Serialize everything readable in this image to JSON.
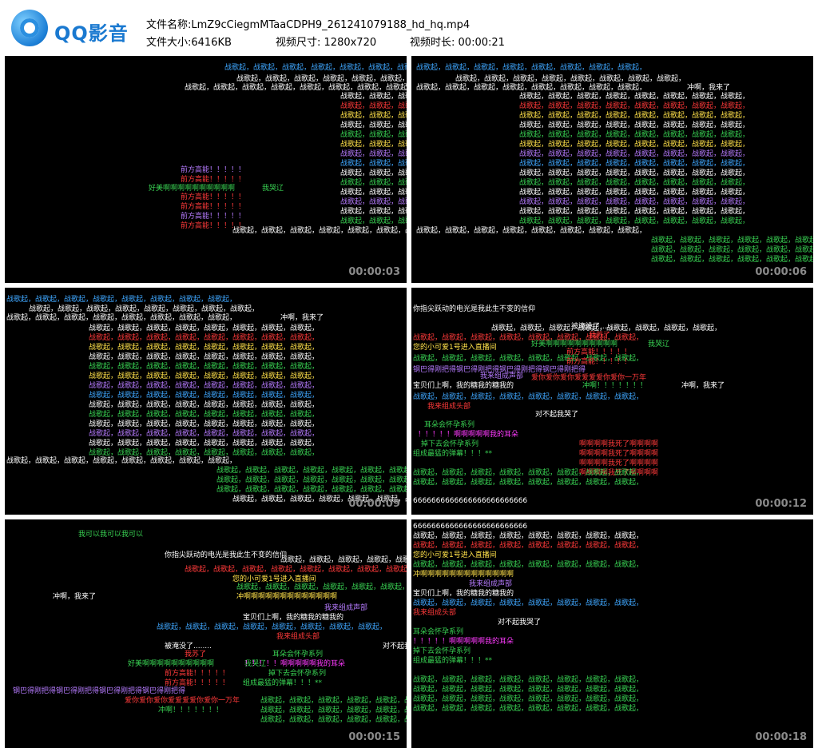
{
  "app": {
    "brand": "QQ影音",
    "logo_icon": "qq-player-logo-icon"
  },
  "file_info": {
    "name_label": "文件名称:",
    "name_value": "LmZ9cCiegmMTaaCDPH9_261241079188_hd_hq.mp4",
    "size_label": "文件大小:",
    "size_value": "6416KB",
    "dims_label": "视频尺寸:",
    "dims_value": "1280x720",
    "duration_label": "视频时长:",
    "duration_value": "00:00:21"
  },
  "thumbnails": [
    {
      "timestamp": "00:00:03"
    },
    {
      "timestamp": "00:00:06"
    },
    {
      "timestamp": "00:00:09"
    },
    {
      "timestamp": "00:00:12"
    },
    {
      "timestamp": "00:00:15"
    },
    {
      "timestamp": "00:00:18"
    }
  ],
  "danmaku": {
    "zhange": "战歌起，战歌起，战歌起，战歌起，战歌起，战歌起，战歌起，战歌起，",
    "qianfang": "前方高能！！！！！",
    "haomei": "好美啊啊啊啊啊啊啊啊啊啊",
    "kule": "我哭辽",
    "chonga_laile": "冲啊，我来了",
    "xinyang": "你指尖跃动的电光是我此生不变的信仰",
    "zhibo": "您的小可爱1号进入直播间",
    "chongaaa": "冲啊啊啊啊啊啊啊啊啊啊啊啊啊",
    "woshengbu": "我来组成声部",
    "baobei": "宝贝们上啊，我的糖我的糖我的",
    "toubu": "我来组成头部",
    "duibuqi": "对不起我哭了",
    "erduo": "耳朵会怀孕系列",
    "erduo2": "！！！！！啊啊啊啊啊我的耳朵",
    "diaoxia": "掉下去会怀孕系列",
    "danmu": "组成最猛的弹幕！！！**",
    "six": "6666666666666666666666666",
    "siwo": "啊啊啊啊我死了啊啊啊啊",
    "ai": "爱你爱你爱你爱爱爱爱你爱你一万年",
    "mei": "被淹没了........",
    "wosu": "我苏了",
    "gangba": "钢巴得刚把得钢巴得刚把得钢巴得刚把得钢巴得刚把得",
    "keyi": "我可以我可以我可以",
    "chonga2": "冲啊！！！！！！！"
  },
  "colors": {
    "bg": "#000000",
    "header_bg": "#ffffff",
    "brand": "#1a79d0",
    "timestamp": "#8a8a8a"
  }
}
